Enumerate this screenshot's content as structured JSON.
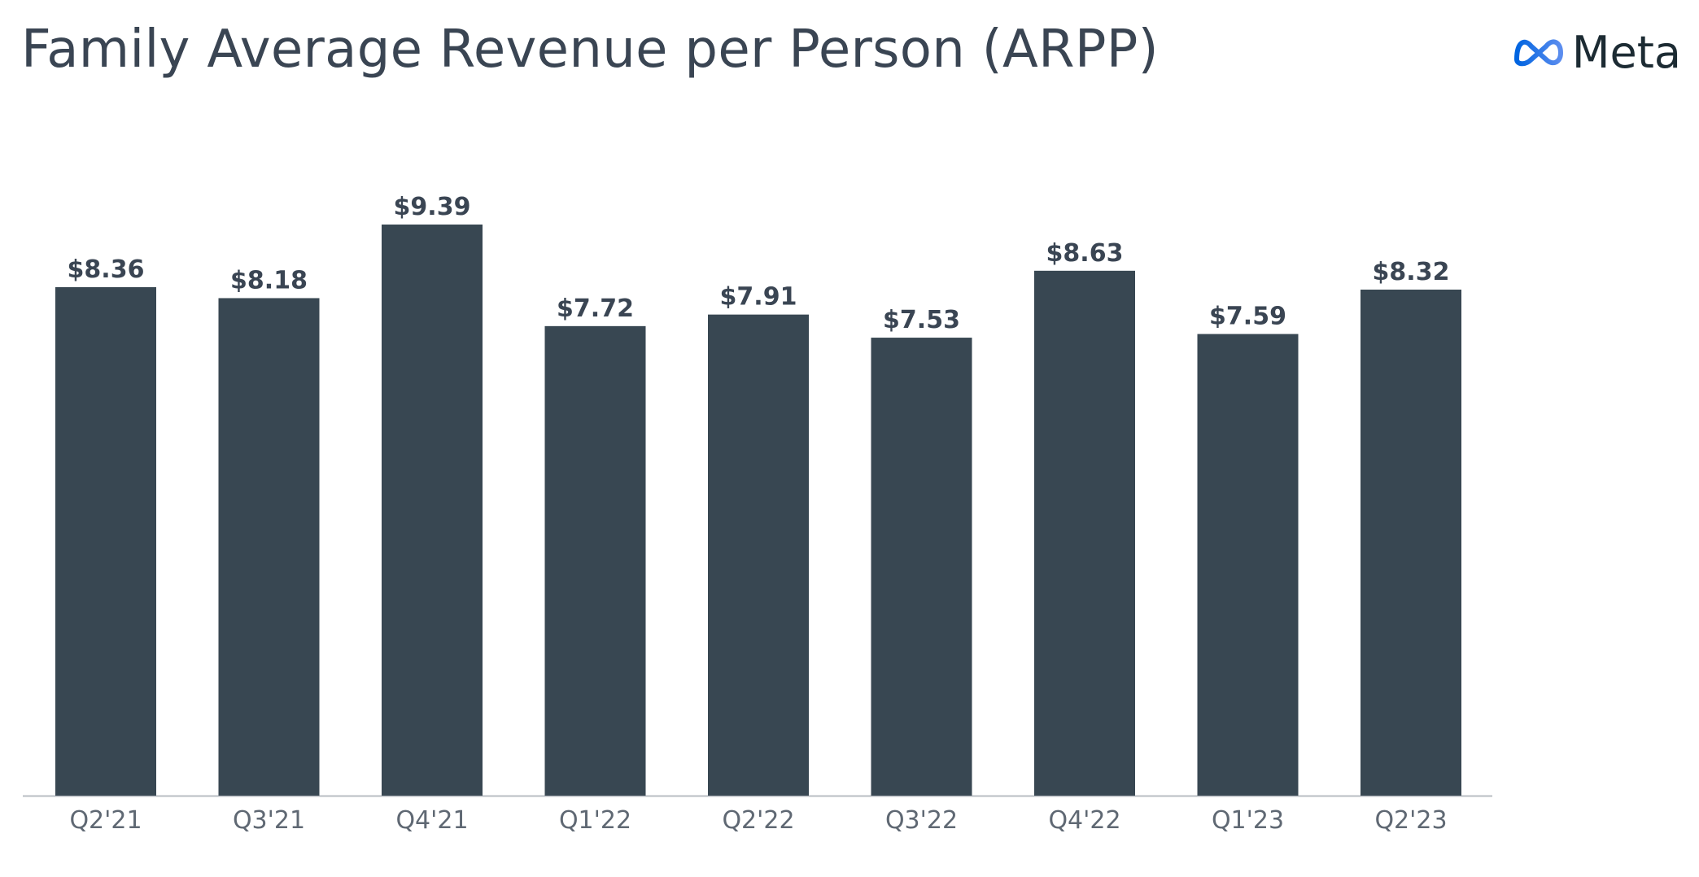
{
  "header": {
    "title": "Family Average Revenue per Person (ARPP)",
    "brand": "Meta",
    "logo_icon": "meta-infinity-icon"
  },
  "colors": {
    "bar": "#384752",
    "axis": "#b9bec3",
    "text": "#3a4553",
    "logo_gradient_start": "#0064e0",
    "logo_gradient_end": "#5b8def"
  },
  "chart_data": {
    "type": "bar",
    "title": "Family Average Revenue per Person (ARPP)",
    "xlabel": "",
    "ylabel": "",
    "categories": [
      "Q2'21",
      "Q3'21",
      "Q4'21",
      "Q1'22",
      "Q2'22",
      "Q3'22",
      "Q4'22",
      "Q1'23",
      "Q2'23"
    ],
    "values": [
      8.36,
      8.18,
      9.39,
      7.72,
      7.91,
      7.53,
      8.63,
      7.59,
      8.32
    ],
    "data_labels": [
      "$8.36",
      "$8.18",
      "$9.39",
      "$7.72",
      "$7.91",
      "$7.53",
      "$8.63",
      "$7.59",
      "$8.32"
    ],
    "ylim": [
      0,
      9.39
    ],
    "grid": false,
    "legend": "none"
  }
}
